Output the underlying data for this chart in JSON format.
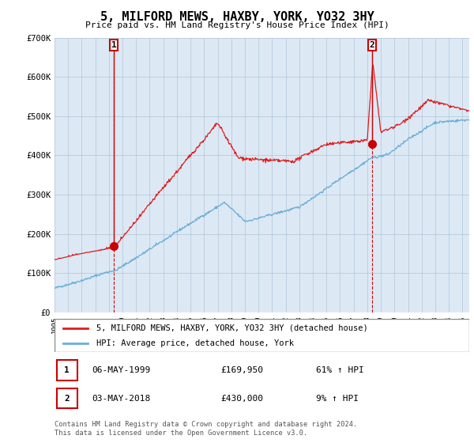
{
  "title": "5, MILFORD MEWS, HAXBY, YORK, YO32 3HY",
  "subtitle": "Price paid vs. HM Land Registry's House Price Index (HPI)",
  "ylim": [
    0,
    700000
  ],
  "yticks": [
    0,
    100000,
    200000,
    300000,
    400000,
    500000,
    600000,
    700000
  ],
  "ytick_labels": [
    "£0",
    "£100K",
    "£200K",
    "£300K",
    "£400K",
    "£500K",
    "£600K",
    "£700K"
  ],
  "xlim_start": 1995.0,
  "xlim_end": 2025.5,
  "xticks": [
    1995,
    1996,
    1997,
    1998,
    1999,
    2000,
    2001,
    2002,
    2003,
    2004,
    2005,
    2006,
    2007,
    2008,
    2009,
    2010,
    2011,
    2012,
    2013,
    2014,
    2015,
    2016,
    2017,
    2018,
    2019,
    2020,
    2021,
    2022,
    2023,
    2024,
    2025
  ],
  "hpi_color": "#6baed6",
  "property_color": "#e31a1c",
  "dashed_line_color": "#cc0000",
  "dot_color": "#cc0000",
  "legend_label_property": "5, MILFORD MEWS, HAXBY, YORK, YO32 3HY (detached house)",
  "legend_label_hpi": "HPI: Average price, detached house, York",
  "sale1_date": 1999.35,
  "sale1_price": 169950,
  "sale1_label": "1",
  "sale2_date": 2018.35,
  "sale2_price": 430000,
  "sale2_label": "2",
  "annotation1_date": "06-MAY-1999",
  "annotation1_price": "£169,950",
  "annotation1_hpi": "61% ↑ HPI",
  "annotation2_date": "03-MAY-2018",
  "annotation2_price": "£430,000",
  "annotation2_hpi": "9% ↑ HPI",
  "footer": "Contains HM Land Registry data © Crown copyright and database right 2024.\nThis data is licensed under the Open Government Licence v3.0.",
  "background_color": "#ffffff",
  "plot_background": "#dce9f5",
  "grid_color": "#b0c4d8"
}
